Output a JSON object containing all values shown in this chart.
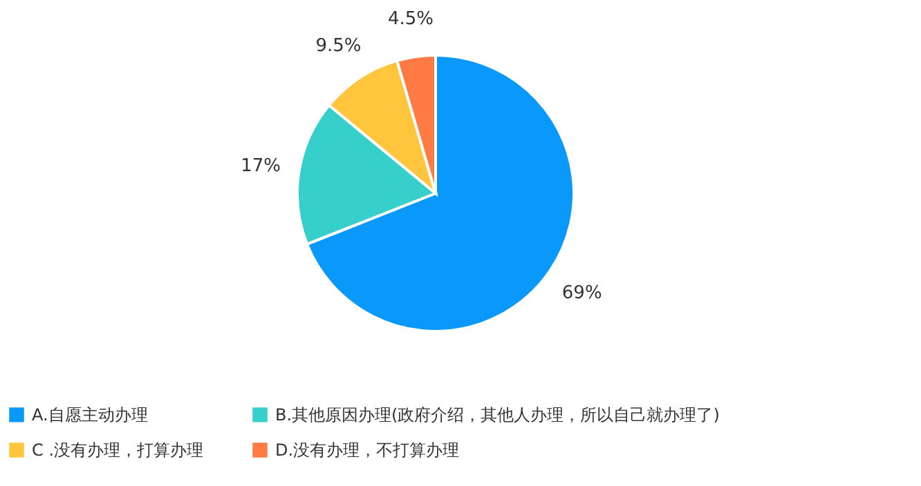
{
  "chart_data": {
    "type": "pie",
    "categories": [
      "A.自愿主动办理",
      "B.其他原因办理(政府介绍，其他人办理，所以自己就办理了)",
      "C .没有办理，打算办理",
      "D.没有办理，不打算办理"
    ],
    "values": [
      69,
      17,
      9.5,
      4.5
    ],
    "value_labels": [
      "69%",
      "17%",
      "9.5%",
      "4.5%"
    ],
    "colors": [
      "#0a98fa",
      "#36cfc9",
      "#ffc53d",
      "#ff7a45"
    ],
    "legend": "bottom"
  }
}
